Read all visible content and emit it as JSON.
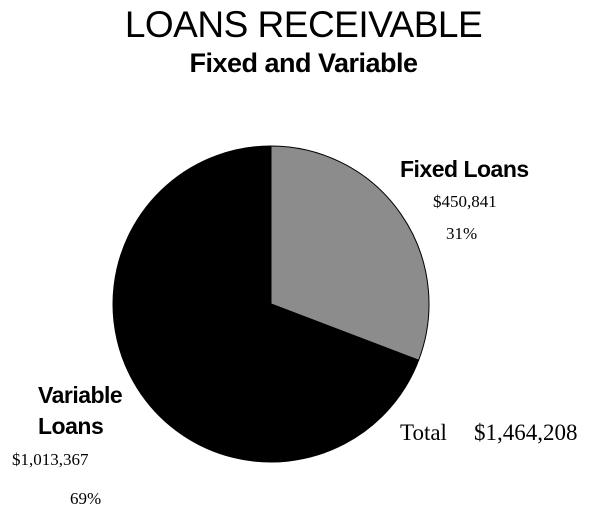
{
  "title": "LOANS RECEIVABLE",
  "subtitle": "Fixed and Variable",
  "chart_data": {
    "type": "pie",
    "title": "LOANS RECEIVABLE",
    "subtitle": "Fixed and Variable",
    "slices": [
      {
        "label": "Fixed Loans",
        "value": 450841,
        "value_label": "$450,841",
        "percent_label": "31%",
        "color": "#8c8c8c"
      },
      {
        "label_line1": "Variable",
        "label_line2": "Loans",
        "value": 1013367,
        "value_label": "$1,013,367",
        "percent_label": "69%",
        "color": "#000000"
      }
    ],
    "total_label": "Total",
    "total_value_label": "$1,464,208"
  }
}
